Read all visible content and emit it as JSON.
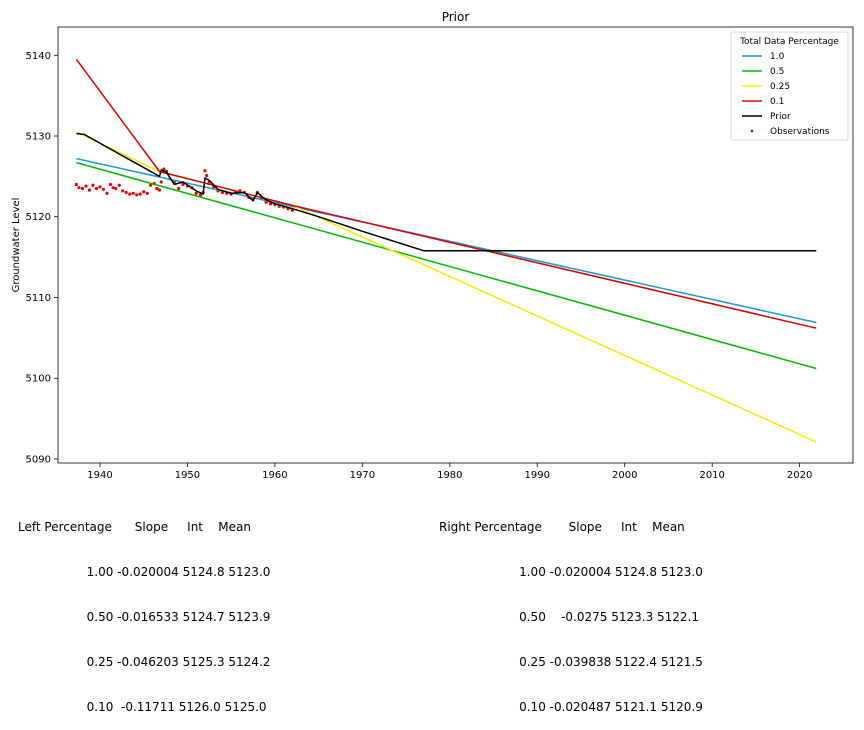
{
  "chart_data": {
    "type": "line",
    "title": "Prior",
    "xlabel": "",
    "ylabel": "Groundwater Level",
    "xlim": [
      1935.2,
      2026.1
    ],
    "ylim": [
      5089.5,
      5143.5
    ],
    "xticks": [
      1940,
      1950,
      1960,
      1970,
      1980,
      1990,
      2000,
      2010,
      2020
    ],
    "yticks": [
      5090,
      5100,
      5110,
      5120,
      5130,
      5140
    ],
    "grid": false,
    "legend": {
      "title": "Total Data Percentage",
      "placement": "top-right",
      "entries": [
        "1.0",
        "0.5",
        "0.25",
        "0.1",
        "Prior",
        "Observations"
      ]
    },
    "series": [
      {
        "name": "1.0",
        "color": "#1a9ad6",
        "x": [
          1937.3,
          2021.9
        ],
        "y": [
          5127.2,
          5106.9
        ]
      },
      {
        "name": "0.5",
        "color": "#00bb00",
        "x": [
          1937.3,
          2021.9
        ],
        "y": [
          5126.7,
          5101.2
        ]
      },
      {
        "name": "0.25",
        "color": "#eeee00",
        "x": [
          1937.3,
          1946.8,
          1962.0,
          2021.9
        ],
        "y": [
          5130.5,
          5125.6,
          5121.4,
          5092.1
        ]
      },
      {
        "name": "0.1",
        "color": "#dd0000",
        "x": [
          1937.3,
          1946.8,
          1962.0,
          2021.9
        ],
        "y": [
          5139.5,
          5125.6,
          5121.4,
          5106.2
        ]
      },
      {
        "name": "Prior",
        "color": "#000000",
        "x": [
          1937.3,
          1938.2,
          1946.8,
          1947.0,
          1947.6,
          1948.5,
          1949.5,
          1951.0,
          1951.8,
          1952.0,
          1952.5,
          1953.5,
          1955.0,
          1956.5,
          1957.5,
          1958.0,
          1958.5,
          1959.0,
          1960.0,
          1962.0,
          1965.0,
          1970.0,
          1977.0,
          1980.0,
          2021.9
        ],
        "y": [
          5130.3,
          5130.2,
          5125.0,
          5125.8,
          5125.5,
          5124.0,
          5124.3,
          5123.2,
          5122.8,
          5124.8,
          5124.5,
          5123.4,
          5122.9,
          5123.0,
          5122.0,
          5123.0,
          5122.5,
          5122.1,
          5121.6,
          5121.0,
          5120.0,
          5118.2,
          5115.8,
          5115.8,
          5115.8
        ]
      }
    ],
    "observations": {
      "name": "Observations",
      "color": "#ee0000",
      "x": [
        1937.3,
        1937.6,
        1938.0,
        1938.4,
        1938.8,
        1939.2,
        1939.6,
        1940.0,
        1940.4,
        1940.8,
        1941.2,
        1941.5,
        1941.8,
        1942.2,
        1942.6,
        1943.0,
        1943.4,
        1943.8,
        1944.2,
        1944.6,
        1945.0,
        1945.4,
        1945.8,
        1946.2,
        1946.5,
        1946.8,
        1947.0,
        1947.3,
        1947.6,
        1948.0,
        1948.5,
        1949.0,
        1949.5,
        1950.0,
        1950.5,
        1951.0,
        1951.5,
        1951.8,
        1952.0,
        1952.2,
        1952.5,
        1953.0,
        1953.5,
        1954.0,
        1954.5,
        1955.0,
        1955.5,
        1956.0,
        1956.5,
        1957.0,
        1957.5,
        1958.0,
        1958.5,
        1959.0,
        1959.5,
        1960.0,
        1960.5,
        1961.0,
        1961.5,
        1962.0
      ],
      "y": [
        5124.0,
        5123.6,
        5123.5,
        5123.8,
        5123.3,
        5123.9,
        5123.5,
        5123.7,
        5123.4,
        5122.9,
        5124.0,
        5123.6,
        5123.5,
        5123.9,
        5123.2,
        5123.0,
        5122.8,
        5122.9,
        5122.7,
        5122.8,
        5123.1,
        5122.9,
        5123.9,
        5124.1,
        5123.5,
        5123.3,
        5124.3,
        5125.9,
        5125.6,
        5124.7,
        5124.3,
        5123.5,
        5124.0,
        5123.8,
        5123.6,
        5122.9,
        5122.7,
        5123.0,
        5125.7,
        5125.1,
        5124.3,
        5123.7,
        5123.2,
        5123.0,
        5122.9,
        5122.8,
        5123.1,
        5123.2,
        5123.0,
        5122.4,
        5122.1,
        5123.0,
        5122.3,
        5121.8,
        5121.6,
        5121.5,
        5121.3,
        5121.2,
        5121.0,
        5120.8
      ]
    }
  },
  "tables": {
    "left": {
      "header": "Left Percentage      Slope     Int    Mean",
      "rows": [
        "                  1.00 -0.020004 5124.8 5123.0",
        "                  0.50 -0.016533 5124.7 5123.9",
        "                  0.25 -0.046203 5125.3 5124.2",
        "                  0.10  -0.11711 5126.0 5125.0"
      ]
    },
    "right": {
      "header": "Right Percentage       Slope     Int    Mean",
      "rows": [
        "                     1.00 -0.020004 5124.8 5123.0",
        "                     0.50    -0.0275 5123.3 5122.1",
        "                     0.25 -0.039838 5122.4 5121.5",
        "                     0.10 -0.020487 5121.1 5120.9"
      ]
    }
  }
}
